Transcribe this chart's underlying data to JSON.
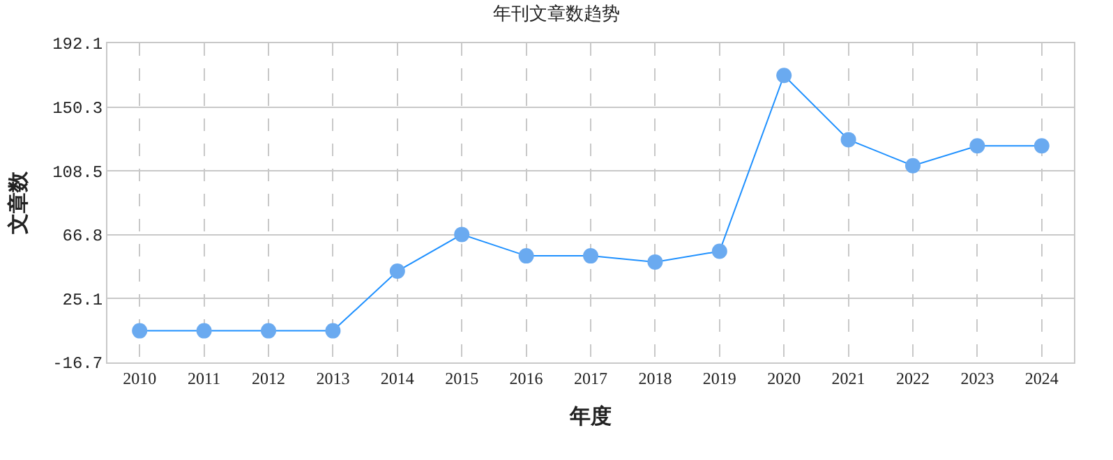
{
  "chart_data": {
    "type": "line",
    "title": "年刊文章数趋势",
    "xlabel": "年度",
    "ylabel": "文章数",
    "categories": [
      "2010",
      "2011",
      "2012",
      "2013",
      "2014",
      "2015",
      "2016",
      "2017",
      "2018",
      "2019",
      "2020",
      "2021",
      "2022",
      "2023",
      "2024"
    ],
    "series": [
      {
        "color": "#1e90ff",
        "values": [
          4,
          4,
          4,
          4,
          43,
          67,
          53,
          53,
          49,
          56,
          171,
          129,
          112,
          125,
          125
        ]
      }
    ],
    "ylim": [
      -16.7,
      192.1
    ],
    "yticks": [
      -16.7,
      25.1,
      66.8,
      108.5,
      150.3,
      192.1
    ],
    "grid": true,
    "marker": "circle",
    "line_style": "solid"
  }
}
